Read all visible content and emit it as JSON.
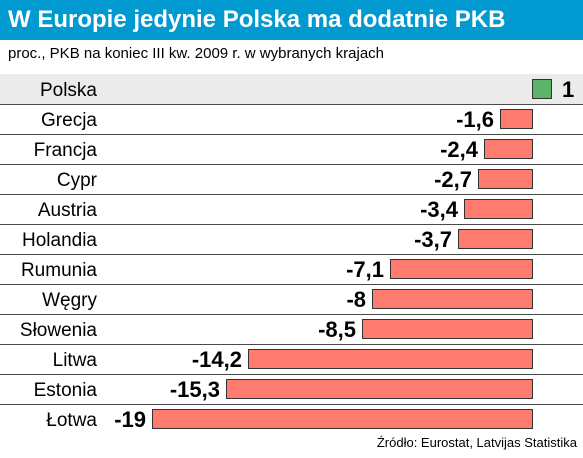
{
  "header": {
    "title": "W Europie jedynie Polska ma dodatnie PKB",
    "subtitle": "proc., PKB na koniec III kw. 2009 r. w wybranych krajach",
    "source": "Źródło: Eurostat, Latvijas Statistika"
  },
  "colors": {
    "title_bar": "#0099d0",
    "positive_bar": "#5cb36a",
    "negative_bar": "#ff7b70",
    "row_shade": "#ebebeb",
    "separator": "#4a4a4a"
  },
  "chart_data": {
    "type": "bar",
    "orientation": "horizontal",
    "title": "W Europie jedynie Polska ma dodatnie PKB",
    "subtitle": "proc., PKB na koniec III kw. 2009 r. w wybranych krajach",
    "categories": [
      "Polska",
      "Grecja",
      "Francja",
      "Cypr",
      "Austria",
      "Holandia",
      "Rumunia",
      "Węgry",
      "Słowenia",
      "Litwa",
      "Estonia",
      "Łotwa"
    ],
    "values": [
      1,
      -1.6,
      -2.4,
      -2.7,
      -3.4,
      -3.7,
      -7.1,
      -8,
      -8.5,
      -14.2,
      -15.3,
      -19
    ],
    "value_labels": [
      "1",
      "-1,6",
      "-2,4",
      "-2,7",
      "-3,4",
      "-3,7",
      "-7,1",
      "-8",
      "-8,5",
      "-14,2",
      "-15,3",
      "-19"
    ],
    "xlim": [
      -19,
      1
    ],
    "grid": false,
    "highlighted_category": "Polska"
  }
}
